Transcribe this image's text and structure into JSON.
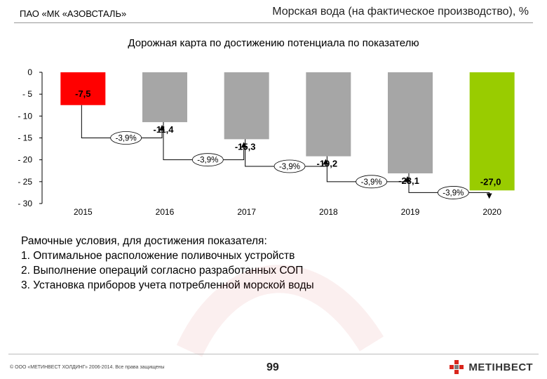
{
  "header": {
    "company": "ПАО «МК «АЗОВСТАЛЬ»",
    "title": "Морская вода (на фактическое производство), %"
  },
  "subtitle": "Дорожная карта по достижению потенциала по показателю",
  "chart_data": {
    "type": "bar",
    "categories": [
      "2015",
      "2016",
      "2017",
      "2018",
      "2019",
      "2020"
    ],
    "values": [
      -7.5,
      -11.4,
      -15.3,
      -19.2,
      -23.1,
      -27.0
    ],
    "value_labels": [
      "-7,5",
      "-11,4",
      "-15,3",
      "-19,2",
      "-23,1",
      "-27,0"
    ],
    "ylim": [
      -30,
      0
    ],
    "y_ticks": [
      0,
      -5,
      -10,
      -15,
      -20,
      -25,
      -30
    ],
    "y_tick_labels": [
      "0",
      "- 5",
      "- 10",
      "- 15",
      "- 20",
      "- 25",
      "- 30"
    ],
    "step_labels": [
      "-3,9%",
      "-3,9%",
      "-3,9%",
      "-3,9%",
      "-3,9%"
    ],
    "step_label_y": [
      -15,
      -20,
      -21.5,
      -25,
      -27.5
    ],
    "bar_colors": [
      "#ff0000",
      "#a6a6a6",
      "#a6a6a6",
      "#a6a6a6",
      "#a6a6a6",
      "#99cc00"
    ],
    "xlabel": "",
    "ylabel": "",
    "grid": false,
    "legend": "none"
  },
  "conditions": {
    "title": "Рамочные условия, для достижения показателя:",
    "items": [
      "1.   Оптимальное расположение поливочных устройств",
      "2.   Выполнение операций согласно разработанных СОП",
      "3.  Установка приборов учета потребленной морской воды"
    ]
  },
  "footer": {
    "copyright": "© ООО «МЕТИНВЕСТ ХОЛДИНГ» 2006-2014. Все права защищены",
    "page": "99",
    "logo": "МЕТІНВЕСТ",
    "logo_icon": "metinvest-logo-icon"
  }
}
